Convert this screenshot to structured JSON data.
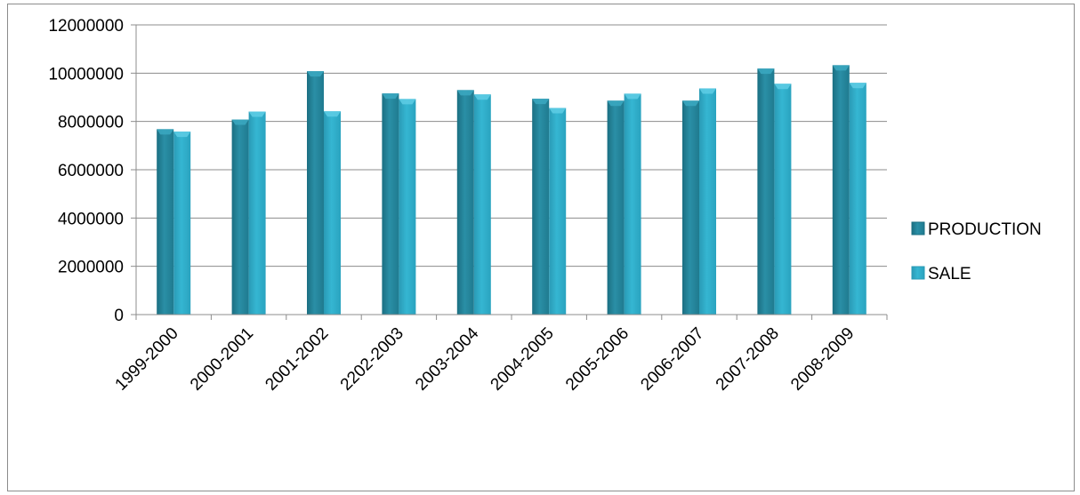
{
  "chart_data": {
    "type": "bar",
    "categories": [
      "1999-2000",
      "2000-2001",
      "2001-2002",
      "2202-2003",
      "2003-2004",
      "2004-2005",
      "2005-2006",
      "2006-2007",
      "2007-2008",
      "2008-2009"
    ],
    "series": [
      {
        "name": "PRODUCTION",
        "values": [
          7680000,
          8080000,
          10080000,
          9160000,
          9300000,
          8940000,
          8860000,
          8860000,
          10190000,
          10330000
        ],
        "color": "#2a8fa6"
      },
      {
        "name": "SALE",
        "values": [
          7580000,
          8410000,
          8420000,
          8930000,
          9120000,
          8560000,
          9150000,
          9370000,
          9560000,
          9600000
        ],
        "color": "#35b6d2"
      }
    ],
    "ylim": [
      0,
      12000000
    ],
    "yticks": [
      "0",
      "2000000",
      "4000000",
      "6000000",
      "8000000",
      "10000000",
      "12000000"
    ],
    "grid": true,
    "legend": "right",
    "title": "",
    "xlabel": "",
    "ylabel": ""
  }
}
